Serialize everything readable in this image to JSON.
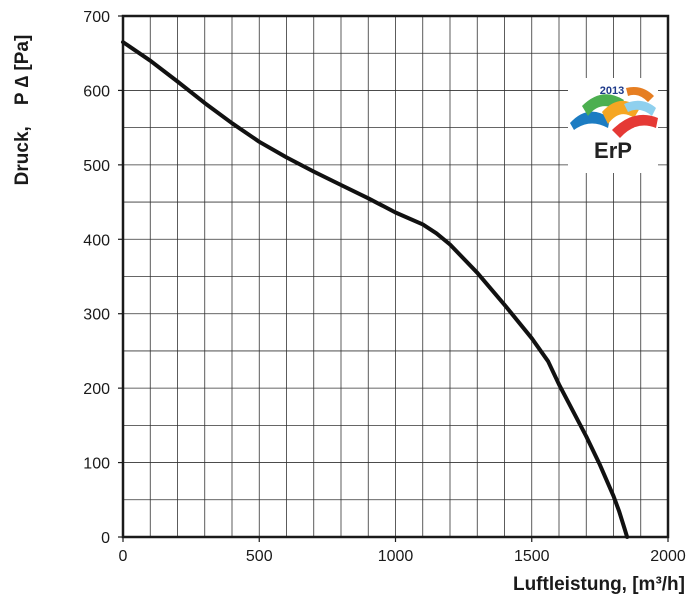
{
  "chart_data": {
    "type": "line",
    "xlabel": "Luftleistung, [m³/h]",
    "ylabel": "Druck,    P ∆ [Pa]",
    "xlim": [
      0,
      2000
    ],
    "ylim": [
      0,
      700
    ],
    "x_ticks": [
      "0",
      "500",
      "1000",
      "1500",
      "2000"
    ],
    "y_ticks": [
      "0",
      "100",
      "200",
      "300",
      "400",
      "500",
      "600",
      "700"
    ],
    "grid": true,
    "x_minor_step": 100,
    "y_minor_step": 50,
    "series": [
      {
        "x": [
          0,
          100,
          200,
          300,
          400,
          500,
          600,
          700,
          800,
          900,
          1000,
          1100,
          1150,
          1200,
          1300,
          1400,
          1500,
          1560,
          1600,
          1700,
          1750,
          1800,
          1820,
          1840,
          1850
        ],
        "y": [
          665,
          640,
          612,
          583,
          556,
          531,
          510,
          491,
          473,
          455,
          436,
          420,
          408,
          393,
          355,
          312,
          267,
          236,
          205,
          135,
          97,
          55,
          35,
          12,
          0
        ]
      }
    ],
    "line_color": "#111111"
  },
  "logo": {
    "year": "2013",
    "text": "ErP",
    "colors": [
      "#1c7cc2",
      "#4caf50",
      "#f5a623",
      "#e53935",
      "#8fd0ee",
      "#e67e22"
    ]
  }
}
